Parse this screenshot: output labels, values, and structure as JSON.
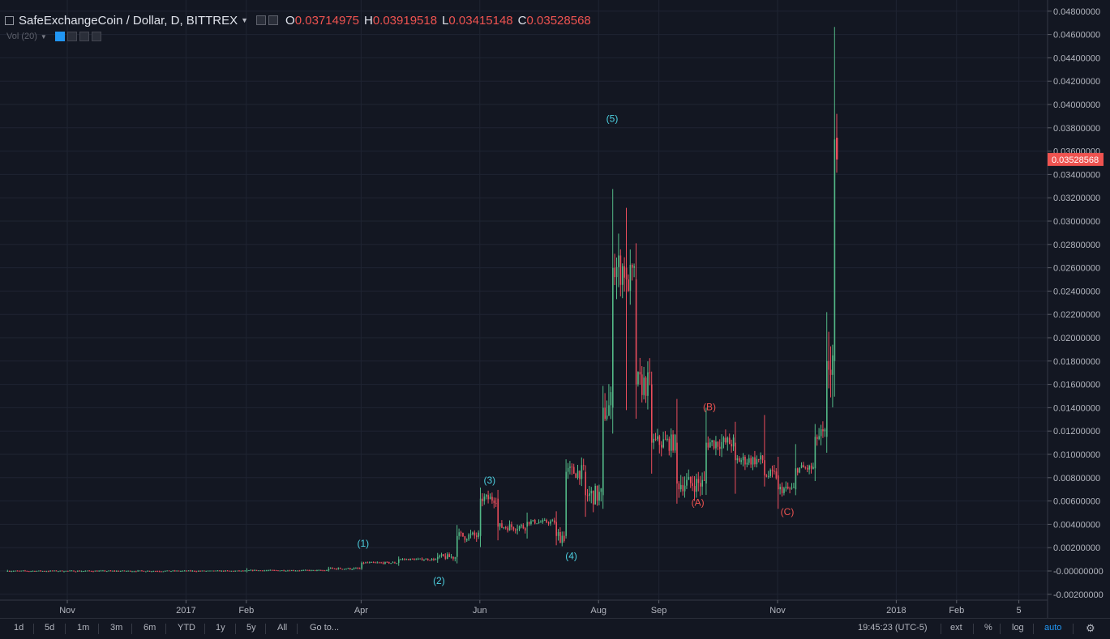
{
  "header": {
    "symbol": "SafeExchangeCoin / Dollar, D, BITTREX",
    "open_label": "O",
    "open": "0.03714975",
    "high_label": "H",
    "high": "0.03919518",
    "low_label": "L",
    "low": "0.03415148",
    "close_label": "C",
    "close": "0.03528568"
  },
  "indicator": {
    "label": "Vol (20)"
  },
  "chart_data": {
    "type": "candlestick",
    "ylim": [
      -0.0022,
      0.0482
    ],
    "y_ticks": [
      "0.04800000",
      "0.04600000",
      "0.04400000",
      "0.04200000",
      "0.04000000",
      "0.03800000",
      "0.03600000",
      "0.03400000",
      "0.03200000",
      "0.03000000",
      "0.02800000",
      "0.02600000",
      "0.02400000",
      "0.02200000",
      "0.02000000",
      "0.01800000",
      "0.01600000",
      "0.01400000",
      "0.01200000",
      "0.01000000",
      "0.00800000",
      "0.00600000",
      "0.00400000",
      "0.00200000",
      "-0.00000000",
      "-0.00200000"
    ],
    "x_ticks": [
      "Nov",
      "2017",
      "Feb",
      "Apr",
      "Jun",
      "Aug",
      "Sep",
      "Nov",
      "2018",
      "Feb",
      "5"
    ],
    "last_price": "0.03528568",
    "candles": [
      {
        "date": "2016-10-01",
        "o": 0.0,
        "h": 5e-05,
        "l": -5e-05,
        "c": 0.0
      },
      {
        "date": "2017-02-01",
        "o": 0.0,
        "h": 0.0002,
        "l": -0.0001,
        "c": 5e-05
      },
      {
        "date": "2017-03-15",
        "o": 5e-05,
        "h": 0.0003,
        "l": 0.0,
        "c": 0.0002
      },
      {
        "date": "2017-04-01",
        "o": 0.0002,
        "h": 0.0008,
        "l": 0.0001,
        "c": 0.0007
      },
      {
        "date": "2017-04-20",
        "o": 0.0007,
        "h": 0.0012,
        "l": 0.0005,
        "c": 0.001
      },
      {
        "date": "2017-05-10",
        "o": 0.001,
        "h": 0.0015,
        "l": 0.0008,
        "c": 0.0012
      },
      {
        "date": "2017-05-20",
        "o": 0.0012,
        "h": 0.0035,
        "l": 0.001,
        "c": 0.003
      },
      {
        "date": "2017-06-01",
        "o": 0.003,
        "h": 0.0068,
        "l": 0.0025,
        "c": 0.0062
      },
      {
        "date": "2017-06-10",
        "o": 0.0062,
        "h": 0.0066,
        "l": 0.003,
        "c": 0.0038
      },
      {
        "date": "2017-06-25",
        "o": 0.0038,
        "h": 0.005,
        "l": 0.003,
        "c": 0.0042
      },
      {
        "date": "2017-07-10",
        "o": 0.0042,
        "h": 0.0045,
        "l": 0.0025,
        "c": 0.003
      },
      {
        "date": "2017-07-15",
        "o": 0.003,
        "h": 0.0095,
        "l": 0.0028,
        "c": 0.0085
      },
      {
        "date": "2017-07-25",
        "o": 0.0085,
        "h": 0.009,
        "l": 0.005,
        "c": 0.0065
      },
      {
        "date": "2017-08-03",
        "o": 0.0065,
        "h": 0.015,
        "l": 0.006,
        "c": 0.014
      },
      {
        "date": "2017-08-08",
        "o": 0.014,
        "h": 0.031,
        "l": 0.013,
        "c": 0.026
      },
      {
        "date": "2017-08-15",
        "o": 0.026,
        "h": 0.0305,
        "l": 0.014,
        "c": 0.025
      },
      {
        "date": "2017-08-20",
        "o": 0.025,
        "h": 0.027,
        "l": 0.014,
        "c": 0.016
      },
      {
        "date": "2017-08-28",
        "o": 0.016,
        "h": 0.0165,
        "l": 0.009,
        "c": 0.011
      },
      {
        "date": "2017-09-10",
        "o": 0.011,
        "h": 0.0145,
        "l": 0.0066,
        "c": 0.0075
      },
      {
        "date": "2017-09-25",
        "o": 0.0075,
        "h": 0.0137,
        "l": 0.0072,
        "c": 0.011
      },
      {
        "date": "2017-10-10",
        "o": 0.011,
        "h": 0.0125,
        "l": 0.0072,
        "c": 0.0095
      },
      {
        "date": "2017-10-25",
        "o": 0.0095,
        "h": 0.0128,
        "l": 0.0075,
        "c": 0.0082
      },
      {
        "date": "2017-11-01",
        "o": 0.0082,
        "h": 0.0095,
        "l": 0.0055,
        "c": 0.007
      },
      {
        "date": "2017-11-10",
        "o": 0.007,
        "h": 0.0105,
        "l": 0.0068,
        "c": 0.0088
      },
      {
        "date": "2017-11-20",
        "o": 0.0088,
        "h": 0.0125,
        "l": 0.0085,
        "c": 0.0115
      },
      {
        "date": "2017-11-26",
        "o": 0.0115,
        "h": 0.02,
        "l": 0.011,
        "c": 0.018
      },
      {
        "date": "2017-11-30",
        "o": 0.018,
        "h": 0.046,
        "l": 0.0175,
        "c": 0.037
      },
      {
        "date": "2017-12-01",
        "o": 0.03714975,
        "h": 0.03919518,
        "l": 0.03415148,
        "c": 0.03528568
      }
    ],
    "annotations": [
      {
        "text": "(1)",
        "date": "2017-04-02",
        "y": 0.0021,
        "color": "#4dd0e1"
      },
      {
        "text": "(2)",
        "date": "2017-05-11",
        "y": -0.0011,
        "color": "#4dd0e1"
      },
      {
        "text": "(3)",
        "date": "2017-06-06",
        "y": 0.0075,
        "color": "#4dd0e1"
      },
      {
        "text": "(4)",
        "date": "2017-07-18",
        "y": 0.001,
        "color": "#4dd0e1"
      },
      {
        "text": "(5)",
        "date": "2017-08-08",
        "y": 0.0385,
        "color": "#4dd0e1"
      },
      {
        "text": "(A)",
        "date": "2017-09-21",
        "y": 0.0056,
        "color": "#ef5350"
      },
      {
        "text": "(B)",
        "date": "2017-09-27",
        "y": 0.0138,
        "color": "#ef5350"
      },
      {
        "text": "(C)",
        "date": "2017-11-06",
        "y": 0.0048,
        "color": "#ef5350"
      }
    ]
  },
  "toolbar": {
    "timeframes": [
      "1d",
      "5d",
      "1m",
      "3m",
      "6m",
      "YTD",
      "1y",
      "5y",
      "All"
    ],
    "goto": "Go to...",
    "clock": "19:45:23 (UTC-5)",
    "ext": "ext",
    "percent": "%",
    "log": "log",
    "auto": "auto"
  }
}
